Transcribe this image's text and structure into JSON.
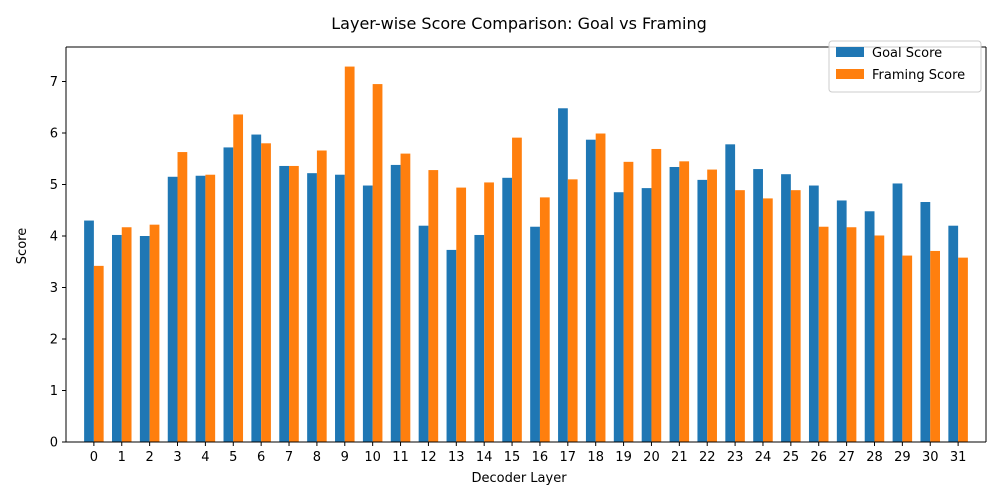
{
  "chart_data": {
    "type": "bar",
    "title": "Layer-wise Score Comparison: Goal vs Framing",
    "xlabel": "Decoder Layer",
    "ylabel": "Score",
    "ylim": [
      0,
      7.67
    ],
    "yticks": [
      0,
      1,
      2,
      3,
      4,
      5,
      6,
      7
    ],
    "grid": false,
    "legend_position": "top-right",
    "categories": [
      "0",
      "1",
      "2",
      "3",
      "4",
      "5",
      "6",
      "7",
      "8",
      "9",
      "10",
      "11",
      "12",
      "13",
      "14",
      "15",
      "16",
      "17",
      "18",
      "19",
      "20",
      "21",
      "22",
      "23",
      "24",
      "25",
      "26",
      "27",
      "28",
      "29",
      "30",
      "31"
    ],
    "series": [
      {
        "name": "Goal Score",
        "color": "#1f77b4",
        "values": [
          4.3,
          4.02,
          4.0,
          5.15,
          5.17,
          5.72,
          5.97,
          5.36,
          5.22,
          5.19,
          4.98,
          5.38,
          4.2,
          3.73,
          4.02,
          5.13,
          4.18,
          6.48,
          5.87,
          4.85,
          4.93,
          5.34,
          5.09,
          5.78,
          5.3,
          5.2,
          4.98,
          4.69,
          4.48,
          5.02,
          4.66,
          4.2
        ]
      },
      {
        "name": "Framing Score",
        "color": "#ff7f0e",
        "values": [
          3.42,
          4.17,
          4.22,
          5.63,
          5.19,
          6.36,
          5.8,
          5.36,
          5.66,
          7.29,
          6.95,
          5.6,
          5.28,
          4.94,
          5.04,
          5.91,
          4.75,
          5.1,
          5.99,
          5.44,
          5.69,
          5.45,
          5.29,
          4.89,
          4.73,
          4.89,
          4.18,
          4.17,
          4.01,
          3.62,
          3.71,
          3.58
        ]
      }
    ]
  }
}
